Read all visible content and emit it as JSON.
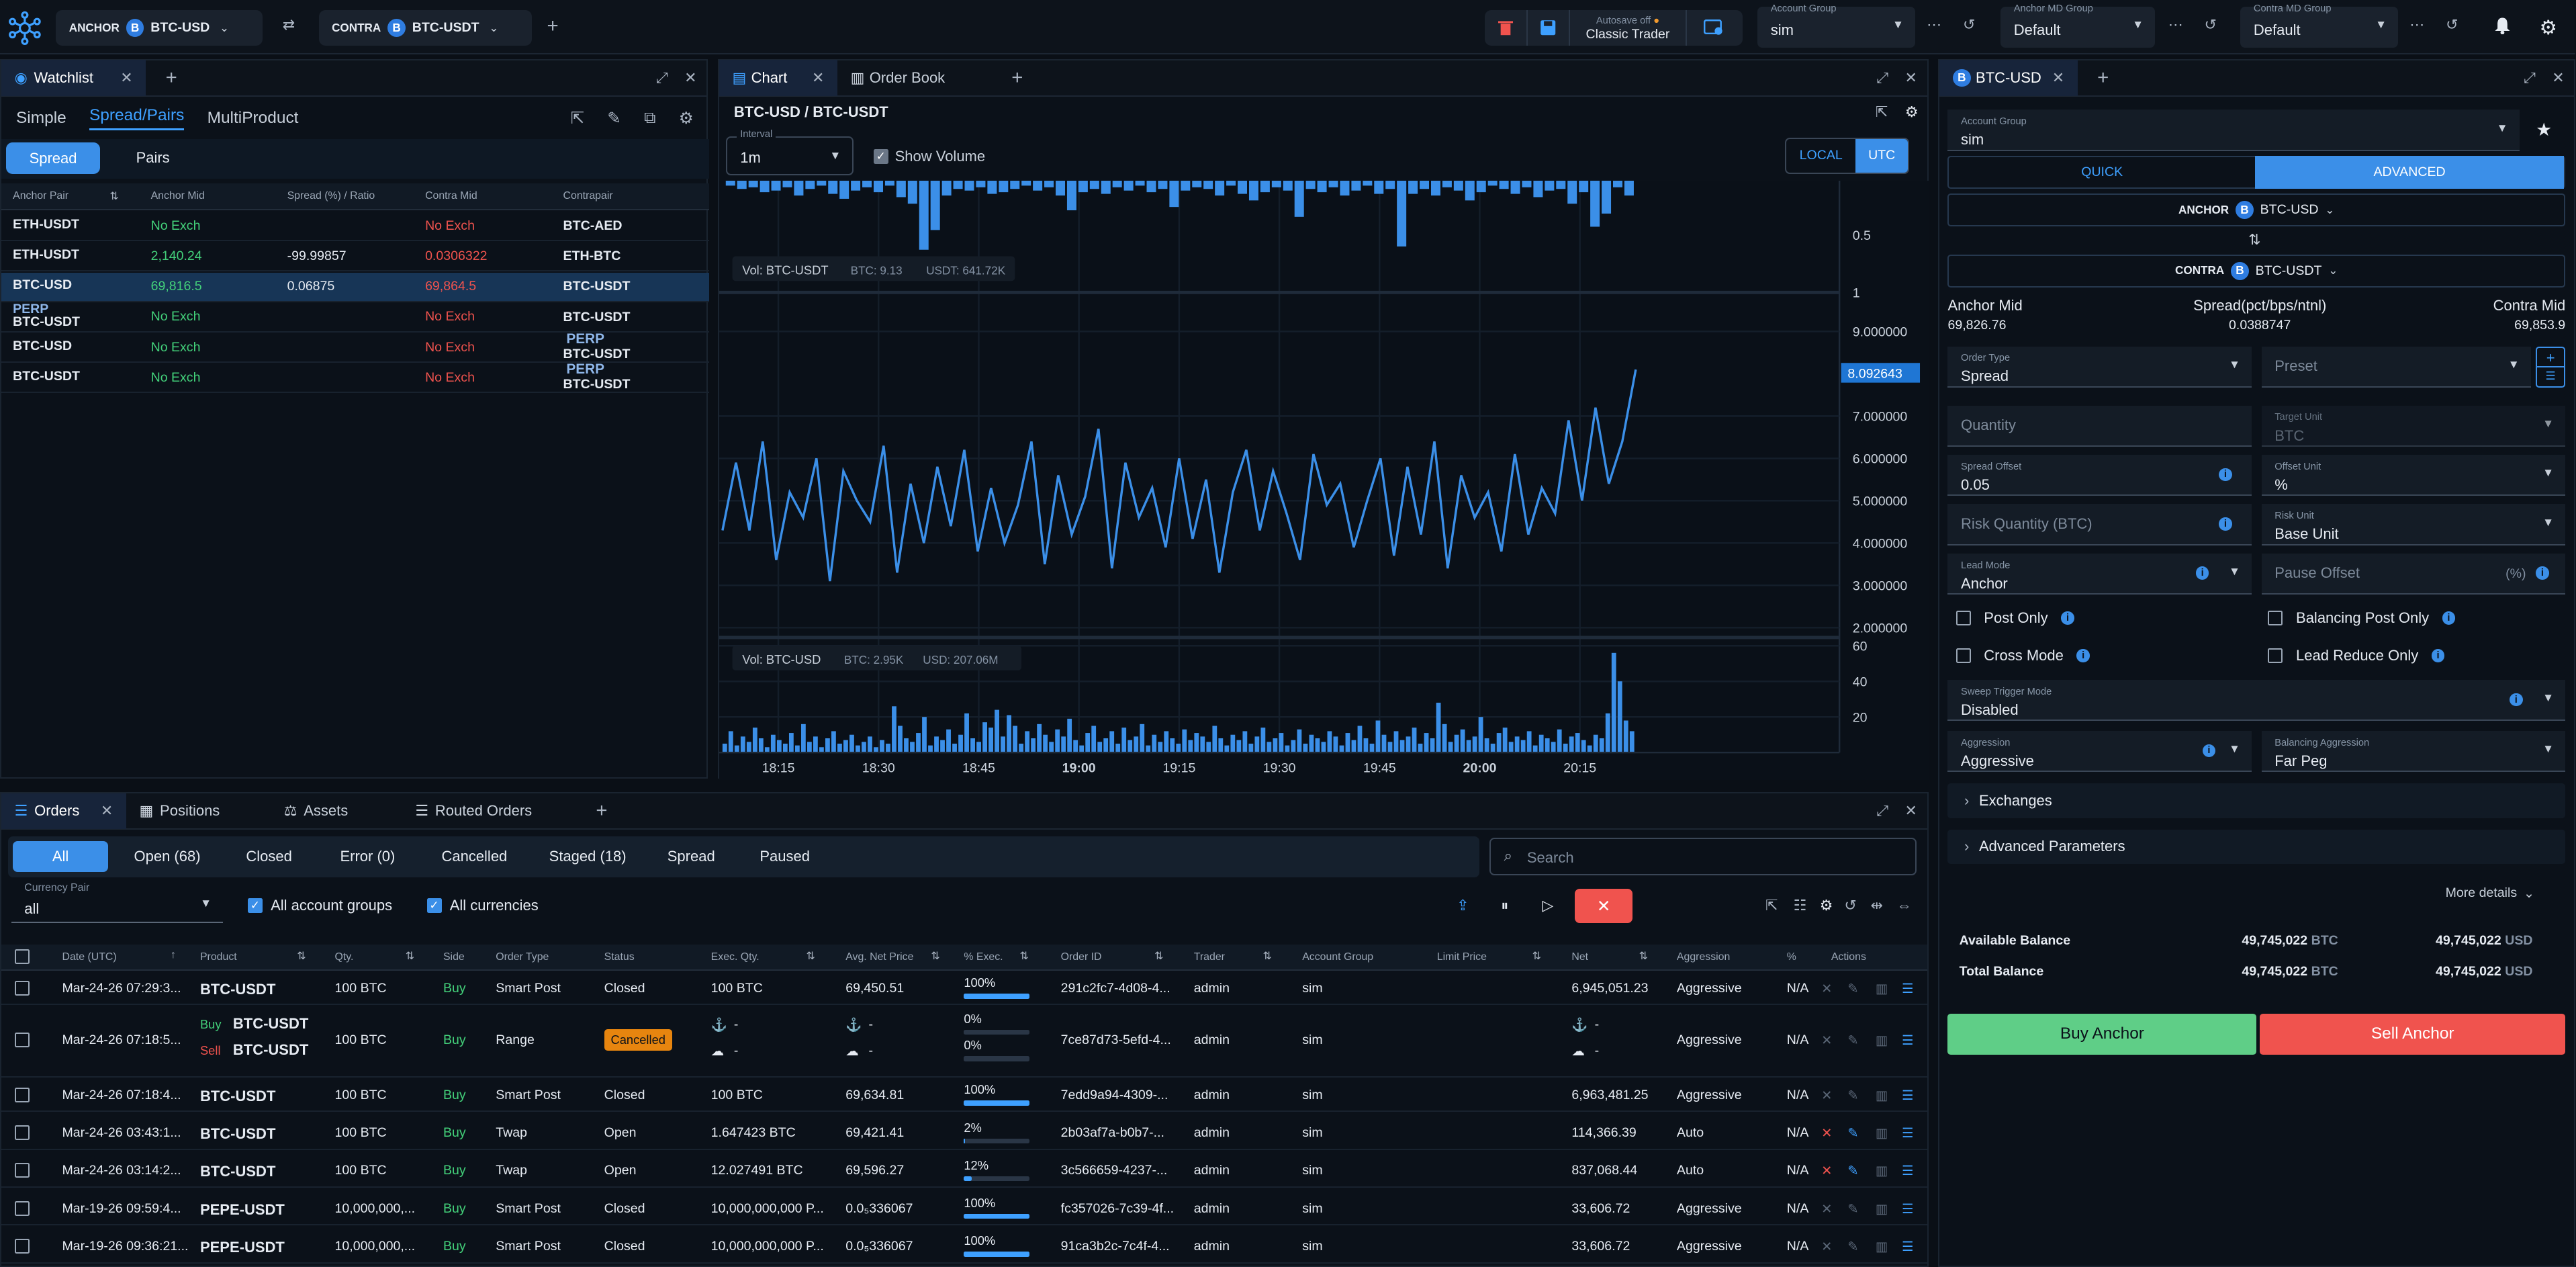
{
  "topbar": {
    "anchor_label": "ANCHOR",
    "anchor_symbol": "BTC-USD",
    "contra_label": "CONTRA",
    "contra_symbol": "BTC-USDT",
    "autosave": "Autosave off",
    "layout": "Classic Trader",
    "account_group_label": "Account Group",
    "account_group_value": "sim",
    "anchor_md_label": "Anchor MD Group",
    "anchor_md_value": "Default",
    "contra_md_label": "Contra MD Group",
    "contra_md_value": "Default"
  },
  "watchlist": {
    "tab": "Watchlist",
    "modes": [
      "Simple",
      "Spread/Pairs",
      "MultiProduct"
    ],
    "toggle": [
      "Spread",
      "Pairs"
    ],
    "columns": [
      "Anchor Pair",
      "Anchor Mid",
      "Spread (%) / Ratio",
      "Contra Mid",
      "Contrapair"
    ],
    "rows": [
      {
        "perp_a": "",
        "anchor": "ETH-USDT",
        "mid": "No Exch",
        "spread": "",
        "contra_mid": "No Exch",
        "perp_c": "",
        "contra": "BTC-AED"
      },
      {
        "perp_a": "",
        "anchor": "ETH-USDT",
        "mid": "2,140.24",
        "spread": "-99.99857",
        "contra_mid": "0.0306322",
        "perp_c": "",
        "contra": "ETH-BTC"
      },
      {
        "perp_a": "",
        "anchor": "BTC-USD",
        "mid": "69,816.5",
        "spread": "0.06875",
        "contra_mid": "69,864.5",
        "perp_c": "",
        "contra": "BTC-USDT"
      },
      {
        "perp_a": "PERP",
        "anchor": "BTC-USDT",
        "mid": "No Exch",
        "spread": "",
        "contra_mid": "No Exch",
        "perp_c": "",
        "contra": "BTC-USDT"
      },
      {
        "perp_a": "",
        "anchor": "BTC-USD",
        "mid": "No Exch",
        "spread": "",
        "contra_mid": "No Exch",
        "perp_c": "PERP",
        "contra": "BTC-USDT"
      },
      {
        "perp_a": "",
        "anchor": "BTC-USDT",
        "mid": "No Exch",
        "spread": "",
        "contra_mid": "No Exch",
        "perp_c": "PERP",
        "contra": "BTC-USDT"
      }
    ]
  },
  "chart_panel": {
    "tabs": [
      "Chart",
      "Order Book"
    ],
    "title": "BTC-USD / BTC-USDT",
    "interval_label": "Interval",
    "interval_value": "1m",
    "show_volume": "Show Volume",
    "tz": [
      "LOCAL",
      "UTC"
    ],
    "vol_top": {
      "label": "Vol: BTC-USDT",
      "a": "BTC: 9.13",
      "b": "USDT: 641.72K"
    },
    "vol_bottom": {
      "label": "Vol: BTC-USD",
      "a": "BTC: 2.95K",
      "b": "USD: 207.06M"
    },
    "top_axis": [
      "0.5",
      "1"
    ],
    "mid_axis": [
      "9.000000",
      "7.000000",
      "6.000000",
      "5.000000",
      "4.000000",
      "3.000000",
      "2.000000"
    ],
    "last_value": "8.092643",
    "bottom_axis": [
      "60",
      "40",
      "20"
    ],
    "time_axis": [
      "18:15",
      "18:30",
      "18:45",
      "19:00",
      "19:15",
      "19:30",
      "19:45",
      "20:00",
      "20:15"
    ]
  },
  "chart_data": [
    {
      "type": "line",
      "series": [
        {
          "values": [
            4.3,
            5.9,
            4.3,
            6.4,
            3.6,
            5.2,
            4.6,
            6.0,
            3.1,
            5.7,
            5.0,
            4.5,
            6.3,
            3.3,
            5.4,
            4.0,
            5.8,
            4.4,
            6.2,
            3.8,
            5.3,
            4.0,
            4.9,
            6.4,
            3.5,
            5.6,
            4.2,
            5.1,
            6.7,
            3.4,
            5.9,
            4.6,
            5.3,
            3.9,
            6.0,
            4.1,
            5.5,
            3.3,
            5.2,
            6.2,
            4.3,
            5.7,
            4.7,
            3.6,
            6.1,
            4.9,
            5.4,
            3.9,
            5.0,
            6.0,
            3.7,
            5.8,
            4.2,
            6.4,
            3.4,
            5.6,
            4.6,
            5.2,
            3.8,
            6.1,
            4.2,
            5.3,
            4.7,
            6.9,
            5.0,
            7.2,
            5.4,
            6.4,
            8.1
          ]
        }
      ]
    },
    {
      "type": "bar",
      "ylim": [
        0,
        60
      ],
      "series": [
        {
          "name": "Vol: BTC-USD",
          "values": [
            5,
            12,
            4,
            9,
            6,
            14,
            8,
            3,
            10,
            7,
            5,
            11,
            4,
            16,
            6,
            9,
            3,
            8,
            12,
            5,
            7,
            10,
            4,
            6,
            9,
            3,
            7,
            5,
            26,
            15,
            8,
            6,
            11,
            20,
            4,
            9,
            7,
            13,
            5,
            10,
            22,
            8,
            6,
            17,
            14,
            24,
            9,
            21,
            15,
            5,
            12,
            8,
            16,
            10,
            6,
            13,
            9,
            19,
            7,
            4,
            11,
            15,
            6,
            8,
            12,
            5,
            14,
            7,
            9,
            16,
            4,
            10,
            6,
            12,
            8,
            5,
            13,
            7,
            11,
            9,
            6,
            15,
            8,
            4,
            10,
            7,
            12,
            5,
            9,
            14,
            6,
            8,
            11,
            4,
            7,
            13,
            5,
            10,
            8,
            6,
            12,
            9,
            4,
            11,
            7,
            15,
            8,
            5,
            18,
            10,
            6,
            12,
            7,
            9,
            14,
            5,
            11,
            8,
            28,
            16,
            6,
            10,
            13,
            7,
            9,
            20,
            8,
            5,
            11,
            14,
            6,
            9,
            7,
            12,
            4,
            10,
            8,
            6,
            13,
            5,
            9,
            11,
            7,
            4,
            10,
            8,
            22,
            56,
            40,
            18,
            12
          ]
        }
      ]
    }
  ],
  "orders": {
    "tabs": [
      "Orders",
      "Positions",
      "Assets",
      "Routed Orders"
    ],
    "filters": [
      "All",
      "Open (68)",
      "Closed",
      "Error (0)",
      "Cancelled",
      "Staged (18)",
      "Spread",
      "Paused"
    ],
    "search_placeholder": "Search",
    "currency_pair_label": "Currency Pair",
    "currency_pair_value": "all",
    "all_account_groups": "All account groups",
    "all_currencies": "All currencies",
    "columns": [
      "Date (UTC)",
      "Product",
      "Qty.",
      "Side",
      "Order Type",
      "Status",
      "Exec. Qty.",
      "Avg. Net Price",
      "% Exec.",
      "Order ID",
      "Trader",
      "Account Group",
      "Limit Price",
      "Net",
      "Aggression",
      "%",
      "Actions"
    ],
    "rows": [
      {
        "date": "Mar-24-26 07:29:3...",
        "product": "BTC-USDT",
        "qty": "100 BTC",
        "side": "Buy",
        "type": "Smart Post",
        "status": "Closed",
        "exec": "100 BTC",
        "avg": "69,450.51",
        "pct": "100%",
        "pctv": 1.0,
        "id": "291c2fc7-4d08-4...",
        "trader": "admin",
        "group": "sim",
        "limit": "",
        "net": "6,945,051.23",
        "aggr": "Aggressive",
        "p": "N/A"
      },
      {
        "date": "Mar-24-26 07:18:5...",
        "product": "",
        "qty": "100 BTC",
        "side": "Buy",
        "type": "Range",
        "status": "Cancelled",
        "exec": "",
        "avg": "",
        "pct": "",
        "pctv": 0,
        "id": "7ce87d73-5efd-4...",
        "trader": "admin",
        "group": "sim",
        "limit": "",
        "net": "",
        "aggr": "Aggressive",
        "p": "N/A"
      },
      {
        "date": "Mar-24-26 07:18:4...",
        "product": "BTC-USDT",
        "qty": "100 BTC",
        "side": "Buy",
        "type": "Smart Post",
        "status": "Closed",
        "exec": "100 BTC",
        "avg": "69,634.81",
        "pct": "100%",
        "pctv": 1.0,
        "id": "7edd9a94-4309-...",
        "trader": "admin",
        "group": "sim",
        "limit": "",
        "net": "6,963,481.25",
        "aggr": "Aggressive",
        "p": "N/A"
      },
      {
        "date": "Mar-24-26 03:43:1...",
        "product": "BTC-USDT",
        "qty": "100 BTC",
        "side": "Buy",
        "type": "Twap",
        "status": "Open",
        "exec": "1.647423 BTC",
        "avg": "69,421.41",
        "pct": "2%",
        "pctv": 0.02,
        "id": "2b03af7a-b0b7-...",
        "trader": "admin",
        "group": "sim",
        "limit": "",
        "net": "114,366.39",
        "aggr": "Auto",
        "p": "N/A"
      },
      {
        "date": "Mar-24-26 03:14:2...",
        "product": "BTC-USDT",
        "qty": "100 BTC",
        "side": "Buy",
        "type": "Twap",
        "status": "Open",
        "exec": "12.027491 BTC",
        "avg": "69,596.27",
        "pct": "12%",
        "pctv": 0.12,
        "id": "3c566659-4237-...",
        "trader": "admin",
        "group": "sim",
        "limit": "",
        "net": "837,068.44",
        "aggr": "Auto",
        "p": "N/A"
      },
      {
        "date": "Mar-19-26 09:59:4...",
        "product": "PEPE-USDT",
        "qty": "10,000,000,...",
        "side": "Buy",
        "type": "Smart Post",
        "status": "Closed",
        "exec": "10,000,000,000 P...",
        "avg": "0.0₅336067",
        "pct": "100%",
        "pctv": 1.0,
        "id": "fc357026-7c39-4f...",
        "trader": "admin",
        "group": "sim",
        "limit": "",
        "net": "33,606.72",
        "aggr": "Aggressive",
        "p": "N/A"
      },
      {
        "date": "Mar-19-26 09:36:21...",
        "product": "PEPE-USDT",
        "qty": "10,000,000,...",
        "side": "Buy",
        "type": "Smart Post",
        "status": "Closed",
        "exec": "10,000,000,000 P...",
        "avg": "0.0₅336067",
        "pct": "100%",
        "pctv": 1.0,
        "id": "91ca3b2c-7c4f-4...",
        "trader": "admin",
        "group": "sim",
        "limit": "",
        "net": "33,606.72",
        "aggr": "Aggressive",
        "p": "N/A"
      }
    ],
    "range_row": {
      "buy": "Buy",
      "buy_product": "BTC-USDT",
      "sell": "Sell",
      "sell_product": "BTC-USDT",
      "dash": "-",
      "pct_a": "0%",
      "pct_b": "0%"
    }
  },
  "ticket": {
    "tab": "BTC-USD",
    "account_group_label": "Account Group",
    "account_group_value": "sim",
    "modes": [
      "QUICK",
      "ADVANCED"
    ],
    "anchor_label": "ANCHOR",
    "anchor_symbol": "BTC-USD",
    "contra_label": "CONTRA",
    "contra_symbol": "BTC-USDT",
    "anchor_mid_label": "Anchor Mid",
    "anchor_mid": "69,826.76",
    "spread_label": "Spread(pct/bps/ntnl)",
    "spread_value": "0.0388747",
    "contra_mid_label": "Contra Mid",
    "contra_mid": "69,853.9",
    "order_type_label": "Order Type",
    "order_type": "Spread",
    "preset_placeholder": "Preset",
    "quantity_placeholder": "Quantity",
    "target_unit_label": "Target Unit",
    "target_unit": "BTC",
    "spread_offset_label": "Spread Offset",
    "spread_offset": "0.05",
    "offset_unit_label": "Offset Unit",
    "offset_unit": "%",
    "risk_qty_placeholder": "Risk Quantity (BTC)",
    "risk_unit_label": "Risk Unit",
    "risk_unit": "Base Unit",
    "lead_mode_label": "Lead Mode",
    "lead_mode": "Anchor",
    "pause_offset_placeholder": "Pause Offset",
    "pause_offset_unit": "(%)",
    "post_only": "Post Only",
    "balancing_post_only": "Balancing Post Only",
    "cross_mode": "Cross Mode",
    "lead_reduce_only": "Lead Reduce Only",
    "sweep_label": "Sweep Trigger Mode",
    "sweep_value": "Disabled",
    "aggression_label": "Aggression",
    "aggression_value": "Aggressive",
    "bal_aggr_label": "Balancing Aggression",
    "bal_aggr_value": "Far Peg",
    "exchanges": "Exchanges",
    "advanced_params": "Advanced Parameters",
    "more_details": "More details",
    "available_balance": "Available Balance",
    "total_balance": "Total Balance",
    "avail_btc": "49,745,022",
    "avail_usd": "49,745,022",
    "total_btc": "49,745,022",
    "total_usd": "49,745,022",
    "btc": "BTC",
    "usd": "USD",
    "buy": "Buy Anchor",
    "sell": "Sell Anchor"
  },
  "colors": {
    "accent": "#3b8fe8",
    "buy": "#5fce87",
    "sell": "#f0534e",
    "bg": "#0b1119"
  }
}
